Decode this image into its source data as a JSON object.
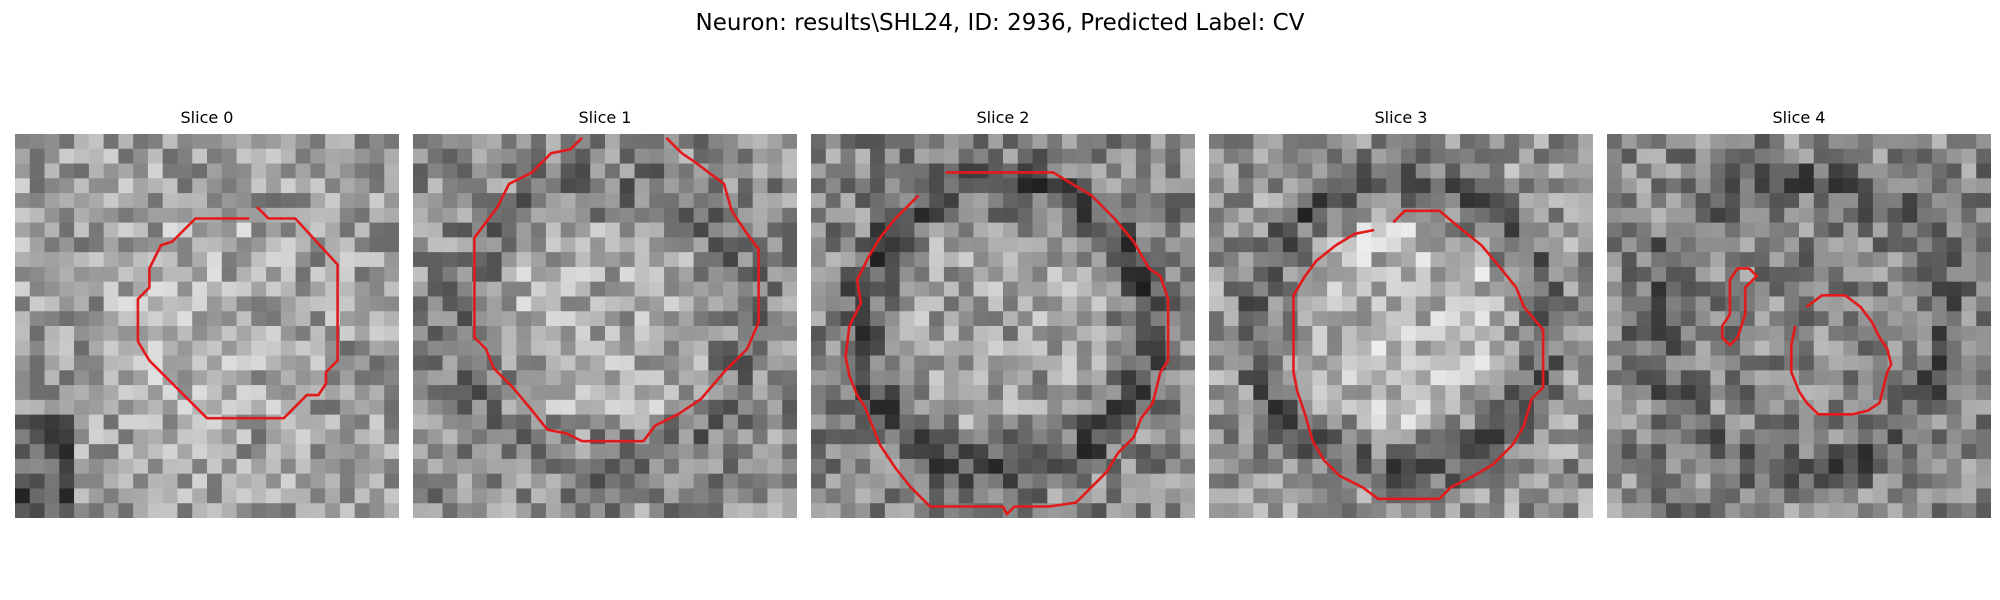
{
  "figure": {
    "title": "Neuron: results\\SHL24, ID: 2936, Predicted Label: CV"
  },
  "contour_color": "#e31a1c",
  "panels": [
    {
      "title": "Slice 0",
      "seed": 11,
      "base": 0.62,
      "center_bright": 0.05,
      "dark_ring": 0.0,
      "dark_corner_bl": true,
      "contours": [
        [
          [
            0.63,
            0.19
          ],
          [
            0.66,
            0.22
          ],
          [
            0.73,
            0.22
          ],
          [
            0.84,
            0.34
          ],
          [
            0.84,
            0.59
          ],
          [
            0.81,
            0.62
          ],
          [
            0.81,
            0.65
          ],
          [
            0.79,
            0.68
          ],
          [
            0.76,
            0.68
          ],
          [
            0.7,
            0.74
          ],
          [
            0.5,
            0.74
          ],
          [
            0.35,
            0.59
          ],
          [
            0.32,
            0.54
          ],
          [
            0.32,
            0.43
          ],
          [
            0.35,
            0.4
          ],
          [
            0.35,
            0.35
          ],
          [
            0.38,
            0.29
          ],
          [
            0.41,
            0.28
          ],
          [
            0.47,
            0.22
          ],
          [
            0.61,
            0.22
          ]
        ]
      ]
    },
    {
      "title": "Slice 1",
      "seed": 23,
      "base": 0.55,
      "center_bright": 0.12,
      "dark_ring": 0.1,
      "dark_corner_bl": false,
      "contours": [
        [
          [
            0.44,
            0.01
          ],
          [
            0.41,
            0.04
          ],
          [
            0.36,
            0.05
          ],
          [
            0.31,
            0.1
          ],
          [
            0.25,
            0.13
          ],
          [
            0.22,
            0.19
          ],
          [
            0.19,
            0.23
          ],
          [
            0.16,
            0.27
          ],
          [
            0.16,
            0.53
          ],
          [
            0.19,
            0.56
          ],
          [
            0.21,
            0.61
          ],
          [
            0.26,
            0.66
          ],
          [
            0.31,
            0.72
          ],
          [
            0.35,
            0.77
          ],
          [
            0.4,
            0.78
          ],
          [
            0.44,
            0.8
          ],
          [
            0.6,
            0.8
          ],
          [
            0.63,
            0.76
          ],
          [
            0.69,
            0.73
          ],
          [
            0.75,
            0.69
          ],
          [
            0.81,
            0.62
          ],
          [
            0.87,
            0.56
          ],
          [
            0.9,
            0.49
          ],
          [
            0.9,
            0.3
          ],
          [
            0.87,
            0.26
          ],
          [
            0.83,
            0.2
          ],
          [
            0.81,
            0.13
          ],
          [
            0.77,
            0.1
          ],
          [
            0.73,
            0.07
          ],
          [
            0.7,
            0.05
          ],
          [
            0.66,
            0.01
          ]
        ]
      ]
    },
    {
      "title": "Slice 2",
      "seed": 37,
      "base": 0.52,
      "center_bright": 0.1,
      "dark_ring": 0.22,
      "dark_corner_bl": false,
      "contours": [
        [
          [
            0.35,
            0.1
          ],
          [
            0.63,
            0.1
          ],
          [
            0.73,
            0.16
          ],
          [
            0.79,
            0.22
          ],
          [
            0.84,
            0.28
          ],
          [
            0.88,
            0.35
          ],
          [
            0.91,
            0.37
          ],
          [
            0.93,
            0.43
          ],
          [
            0.93,
            0.59
          ],
          [
            0.91,
            0.62
          ],
          [
            0.89,
            0.7
          ],
          [
            0.86,
            0.74
          ],
          [
            0.84,
            0.79
          ],
          [
            0.8,
            0.83
          ],
          [
            0.77,
            0.88
          ],
          [
            0.73,
            0.92
          ],
          [
            0.69,
            0.96
          ],
          [
            0.62,
            0.97
          ],
          [
            0.53,
            0.97
          ],
          [
            0.51,
            0.99
          ],
          [
            0.5,
            0.97
          ],
          [
            0.31,
            0.97
          ],
          [
            0.26,
            0.92
          ],
          [
            0.22,
            0.87
          ],
          [
            0.18,
            0.81
          ],
          [
            0.16,
            0.76
          ],
          [
            0.14,
            0.71
          ],
          [
            0.12,
            0.68
          ],
          [
            0.1,
            0.63
          ],
          [
            0.09,
            0.58
          ],
          [
            0.1,
            0.5
          ],
          [
            0.13,
            0.44
          ],
          [
            0.12,
            0.38
          ],
          [
            0.15,
            0.32
          ],
          [
            0.18,
            0.27
          ],
          [
            0.22,
            0.22
          ],
          [
            0.28,
            0.16
          ]
        ]
      ]
    },
    {
      "title": "Slice 3",
      "seed": 53,
      "base": 0.58,
      "center_bright": 0.14,
      "dark_ring": 0.25,
      "dark_corner_bl": false,
      "contours": [
        [
          [
            0.48,
            0.23
          ],
          [
            0.51,
            0.2
          ],
          [
            0.6,
            0.2
          ],
          [
            0.66,
            0.25
          ],
          [
            0.71,
            0.29
          ],
          [
            0.76,
            0.35
          ],
          [
            0.8,
            0.4
          ],
          [
            0.82,
            0.45
          ],
          [
            0.87,
            0.51
          ],
          [
            0.87,
            0.66
          ],
          [
            0.84,
            0.69
          ],
          [
            0.82,
            0.76
          ],
          [
            0.79,
            0.81
          ],
          [
            0.74,
            0.86
          ],
          [
            0.69,
            0.89
          ],
          [
            0.63,
            0.92
          ],
          [
            0.6,
            0.95
          ],
          [
            0.44,
            0.95
          ],
          [
            0.4,
            0.92
          ],
          [
            0.34,
            0.89
          ],
          [
            0.3,
            0.85
          ],
          [
            0.27,
            0.8
          ],
          [
            0.25,
            0.73
          ],
          [
            0.23,
            0.67
          ],
          [
            0.22,
            0.62
          ],
          [
            0.22,
            0.42
          ],
          [
            0.25,
            0.37
          ],
          [
            0.28,
            0.33
          ],
          [
            0.33,
            0.29
          ],
          [
            0.38,
            0.26
          ],
          [
            0.43,
            0.25
          ]
        ]
      ]
    },
    {
      "title": "Slice 4",
      "seed": 71,
      "base": 0.52,
      "center_bright": 0.0,
      "dark_ring": 0.18,
      "dark_corner_bl": false,
      "contours": [
        [
          [
            0.32,
            0.47
          ],
          [
            0.3,
            0.5
          ],
          [
            0.3,
            0.53
          ],
          [
            0.32,
            0.55
          ],
          [
            0.34,
            0.53
          ],
          [
            0.36,
            0.47
          ],
          [
            0.36,
            0.4
          ],
          [
            0.39,
            0.37
          ],
          [
            0.37,
            0.35
          ],
          [
            0.34,
            0.35
          ],
          [
            0.32,
            0.38
          ],
          [
            0.32,
            0.47
          ]
        ],
        [
          [
            0.52,
            0.45
          ],
          [
            0.56,
            0.42
          ],
          [
            0.62,
            0.42
          ],
          [
            0.66,
            0.45
          ],
          [
            0.69,
            0.49
          ],
          [
            0.71,
            0.53
          ],
          [
            0.73,
            0.56
          ],
          [
            0.74,
            0.6
          ],
          [
            0.73,
            0.62
          ],
          [
            0.72,
            0.66
          ],
          [
            0.71,
            0.7
          ],
          [
            0.68,
            0.72
          ],
          [
            0.64,
            0.73
          ],
          [
            0.55,
            0.73
          ],
          [
            0.52,
            0.7
          ],
          [
            0.5,
            0.67
          ],
          [
            0.48,
            0.62
          ],
          [
            0.48,
            0.55
          ],
          [
            0.49,
            0.5
          ]
        ]
      ]
    }
  ]
}
